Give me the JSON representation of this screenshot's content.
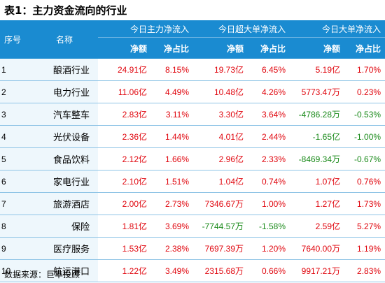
{
  "title": "表1：主力资金流向的行业",
  "header": {
    "index_label": "序号",
    "name_label": "名称",
    "groups": [
      "今日主力净流入",
      "今日超大单净流入",
      "今日大单净流入"
    ],
    "sub_amount": "净额",
    "sub_ratio": "净占比"
  },
  "rows": [
    {
      "idx": "1",
      "name": "酿酒行业",
      "c1": "24.91亿",
      "c2": "8.15%",
      "c3": "19.73亿",
      "c4": "6.45%",
      "c5": "5.19亿",
      "c6": "1.70%",
      "s": [
        "pos",
        "pos",
        "pos",
        "pos",
        "pos",
        "pos"
      ]
    },
    {
      "idx": "2",
      "name": "电力行业",
      "c1": "11.06亿",
      "c2": "4.49%",
      "c3": "10.48亿",
      "c4": "4.26%",
      "c5": "5773.47万",
      "c6": "0.23%",
      "s": [
        "pos",
        "pos",
        "pos",
        "pos",
        "pos",
        "pos"
      ]
    },
    {
      "idx": "3",
      "name": "汽车整车",
      "c1": "2.83亿",
      "c2": "3.11%",
      "c3": "3.30亿",
      "c4": "3.64%",
      "c5": "-4786.28万",
      "c6": "-0.53%",
      "s": [
        "pos",
        "pos",
        "pos",
        "pos",
        "neg",
        "neg"
      ]
    },
    {
      "idx": "4",
      "name": "光伏设备",
      "c1": "2.36亿",
      "c2": "1.44%",
      "c3": "4.01亿",
      "c4": "2.44%",
      "c5": "-1.65亿",
      "c6": "-1.00%",
      "s": [
        "pos",
        "pos",
        "pos",
        "pos",
        "neg",
        "neg"
      ]
    },
    {
      "idx": "5",
      "name": "食品饮料",
      "c1": "2.12亿",
      "c2": "1.66%",
      "c3": "2.96亿",
      "c4": "2.33%",
      "c5": "-8469.34万",
      "c6": "-0.67%",
      "s": [
        "pos",
        "pos",
        "pos",
        "pos",
        "neg",
        "neg"
      ]
    },
    {
      "idx": "6",
      "name": "家电行业",
      "c1": "2.10亿",
      "c2": "1.51%",
      "c3": "1.04亿",
      "c4": "0.74%",
      "c5": "1.07亿",
      "c6": "0.76%",
      "s": [
        "pos",
        "pos",
        "pos",
        "pos",
        "pos",
        "pos"
      ]
    },
    {
      "idx": "7",
      "name": "旅游酒店",
      "c1": "2.00亿",
      "c2": "2.73%",
      "c3": "7346.67万",
      "c4": "1.00%",
      "c5": "1.27亿",
      "c6": "1.73%",
      "s": [
        "pos",
        "pos",
        "pos",
        "pos",
        "pos",
        "pos"
      ]
    },
    {
      "idx": "8",
      "name": "保险",
      "c1": "1.81亿",
      "c2": "3.69%",
      "c3": "-7744.57万",
      "c4": "-1.58%",
      "c5": "2.59亿",
      "c6": "5.27%",
      "s": [
        "pos",
        "pos",
        "neg",
        "neg",
        "pos",
        "pos"
      ]
    },
    {
      "idx": "9",
      "name": "医疗服务",
      "c1": "1.53亿",
      "c2": "2.38%",
      "c3": "7697.39万",
      "c4": "1.20%",
      "c5": "7640.00万",
      "c6": "1.19%",
      "s": [
        "pos",
        "pos",
        "pos",
        "pos",
        "pos",
        "pos"
      ]
    },
    {
      "idx": "10",
      "name": "航运港口",
      "c1": "1.22亿",
      "c2": "3.49%",
      "c3": "2315.68万",
      "c4": "0.66%",
      "c5": "9917.21万",
      "c6": "2.83%",
      "s": [
        "pos",
        "pos",
        "pos",
        "pos",
        "pos",
        "pos"
      ]
    }
  ],
  "source": "数据来源：巨丰投顾",
  "colors": {
    "header_bg": "#1a8bd1",
    "positive": "#e0060e",
    "negative": "#1a8a1a",
    "name_bg": "#eef7fc"
  }
}
